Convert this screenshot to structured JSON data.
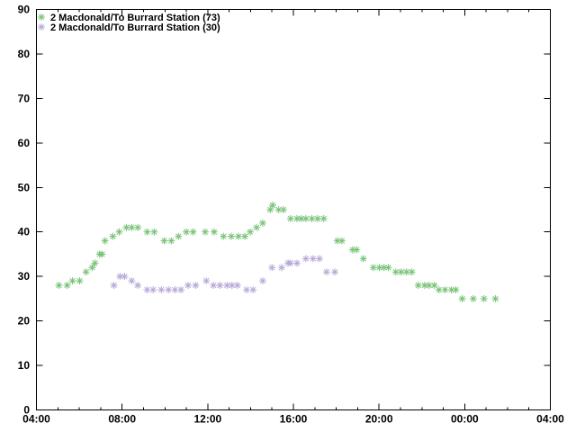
{
  "chart_data": {
    "type": "scatter",
    "title": "",
    "background": "#ffffff",
    "border_color": "#000000",
    "x_axis": {
      "start_hour": 4,
      "end_hour": 28,
      "major_tick_hours": 4,
      "minor_tick_hours": 1,
      "tick_labels": [
        "04:00",
        "08:00",
        "12:00",
        "16:00",
        "20:00",
        "00:00",
        "04:00"
      ]
    },
    "y_axis": {
      "min": 0,
      "max": 90,
      "tick_step": 10,
      "tick_labels": [
        "0",
        "10",
        "20",
        "30",
        "40",
        "50",
        "60",
        "70",
        "80",
        "90"
      ]
    },
    "legend": {
      "position": "top-left",
      "marker": "asterisk",
      "entries": [
        {
          "label": "2 Macdonald/To Burrard Station (73)",
          "color": "#76c276"
        },
        {
          "label": "2 Macdonald/To Burrard Station (30)",
          "color": "#b6a7d8"
        }
      ]
    },
    "series": [
      {
        "name": "2 Macdonald/To Burrard Station (73)",
        "color": "#76c276",
        "marker": "asterisk",
        "points": [
          [
            "05:03",
            28
          ],
          [
            "05:26",
            28
          ],
          [
            "05:41",
            29
          ],
          [
            "06:01",
            29
          ],
          [
            "06:19",
            31
          ],
          [
            "06:36",
            32
          ],
          [
            "06:44",
            33
          ],
          [
            "06:57",
            35
          ],
          [
            "07:04",
            35
          ],
          [
            "07:12",
            38
          ],
          [
            "07:34",
            39
          ],
          [
            "07:52",
            40
          ],
          [
            "08:12",
            41
          ],
          [
            "08:27",
            41
          ],
          [
            "08:44",
            41
          ],
          [
            "09:10",
            40
          ],
          [
            "09:30",
            40
          ],
          [
            "09:58",
            38
          ],
          [
            "10:18",
            38
          ],
          [
            "10:38",
            39
          ],
          [
            "11:00",
            40
          ],
          [
            "11:19",
            40
          ],
          [
            "11:53",
            40
          ],
          [
            "12:18",
            40
          ],
          [
            "12:44",
            39
          ],
          [
            "13:06",
            39
          ],
          [
            "13:26",
            39
          ],
          [
            "13:44",
            39
          ],
          [
            "13:59",
            40
          ],
          [
            "14:17",
            41
          ],
          [
            "14:34",
            42
          ],
          [
            "14:55",
            45
          ],
          [
            "15:02",
            46
          ],
          [
            "15:19",
            45
          ],
          [
            "15:32",
            45
          ],
          [
            "15:52",
            43
          ],
          [
            "16:10",
            43
          ],
          [
            "16:22",
            43
          ],
          [
            "16:35",
            43
          ],
          [
            "16:52",
            43
          ],
          [
            "17:08",
            43
          ],
          [
            "17:25",
            43
          ],
          [
            "18:03",
            38
          ],
          [
            "18:16",
            38
          ],
          [
            "18:46",
            36
          ],
          [
            "18:57",
            36
          ],
          [
            "19:16",
            34
          ],
          [
            "19:44",
            32
          ],
          [
            "20:01",
            32
          ],
          [
            "20:14",
            32
          ],
          [
            "20:26",
            32
          ],
          [
            "20:47",
            31
          ],
          [
            "21:02",
            31
          ],
          [
            "21:17",
            31
          ],
          [
            "21:32",
            31
          ],
          [
            "21:50",
            28
          ],
          [
            "22:08",
            28
          ],
          [
            "22:20",
            28
          ],
          [
            "22:35",
            28
          ],
          [
            "22:48",
            27
          ],
          [
            "23:05",
            27
          ],
          [
            "23:23",
            27
          ],
          [
            "23:35",
            27
          ],
          [
            "23:53",
            25
          ],
          [
            "00:24",
            25
          ],
          [
            "00:54",
            25
          ],
          [
            "01:26",
            25
          ]
        ]
      },
      {
        "name": "2 Macdonald/To Burrard Station (30)",
        "color": "#b6a7d8",
        "marker": "asterisk",
        "points": [
          [
            "07:37",
            28
          ],
          [
            "07:54",
            30
          ],
          [
            "08:07",
            30
          ],
          [
            "08:27",
            29
          ],
          [
            "08:44",
            28
          ],
          [
            "09:10",
            27
          ],
          [
            "09:27",
            27
          ],
          [
            "09:50",
            27
          ],
          [
            "10:10",
            27
          ],
          [
            "10:28",
            27
          ],
          [
            "10:45",
            27
          ],
          [
            "11:05",
            28
          ],
          [
            "11:26",
            28
          ],
          [
            "11:56",
            29
          ],
          [
            "12:16",
            28
          ],
          [
            "12:34",
            28
          ],
          [
            "12:54",
            28
          ],
          [
            "13:08",
            28
          ],
          [
            "13:23",
            28
          ],
          [
            "13:49",
            27
          ],
          [
            "14:07",
            27
          ],
          [
            "14:34",
            29
          ],
          [
            "15:00",
            32
          ],
          [
            "15:27",
            32
          ],
          [
            "15:45",
            33
          ],
          [
            "15:52",
            33
          ],
          [
            "16:10",
            33
          ],
          [
            "16:35",
            34
          ],
          [
            "16:55",
            34
          ],
          [
            "17:13",
            34
          ],
          [
            "17:33",
            31
          ],
          [
            "17:56",
            31
          ]
        ]
      }
    ]
  }
}
